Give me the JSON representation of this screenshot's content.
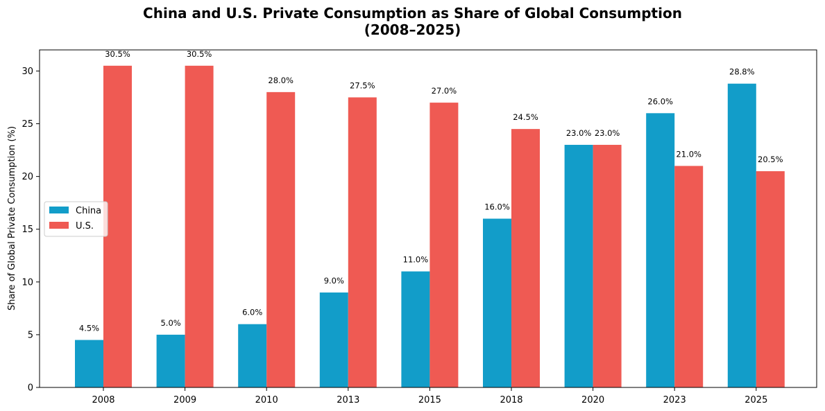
{
  "chart_data": {
    "type": "bar",
    "title_line1": "China and U.S. Private Consumption as Share of Global Consumption",
    "title_line2": "(2008–2025)",
    "xlabel": "",
    "ylabel": "Share of Global Private Consumption (%)",
    "ylim": [
      0,
      32
    ],
    "yticks": [
      0,
      5,
      10,
      15,
      20,
      25,
      30
    ],
    "categories": [
      "2008",
      "2009",
      "2010",
      "2013",
      "2015",
      "2018",
      "2020",
      "2023",
      "2025"
    ],
    "series": [
      {
        "name": "China",
        "color": "#129dc9",
        "values": [
          4.5,
          5.0,
          6.0,
          9.0,
          11.0,
          16.0,
          23.0,
          26.0,
          28.8
        ],
        "labels": [
          "4.5%",
          "5.0%",
          "6.0%",
          "9.0%",
          "11.0%",
          "16.0%",
          "23.0%",
          "26.0%",
          "28.8%"
        ]
      },
      {
        "name": "U.S.",
        "color": "#ef5a53",
        "values": [
          30.5,
          30.5,
          28.0,
          27.5,
          27.0,
          24.5,
          23.0,
          21.0,
          20.5
        ],
        "labels": [
          "30.5%",
          "30.5%",
          "28.0%",
          "27.5%",
          "27.0%",
          "24.5%",
          "23.0%",
          "21.0%",
          "20.5%"
        ]
      }
    ],
    "legend_position": "center-left",
    "grid": false
  }
}
